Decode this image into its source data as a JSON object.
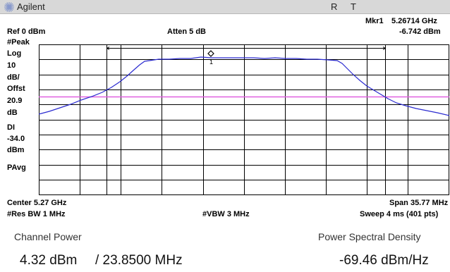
{
  "header": {
    "brand": "Agilent",
    "indicator_r": "R",
    "indicator_t": "T"
  },
  "marker": {
    "readout_label": "Mkr1",
    "frequency": "5.26714 GHz",
    "amplitude": "-6.742 dBm",
    "label": "1"
  },
  "left_panel": {
    "ref": "Ref 0 dBm",
    "detector": "#Peak",
    "scale_type": "Log",
    "scale_value": "10",
    "scale_unit": "dB/",
    "offset_label": "Offst",
    "offset_value": "20.9",
    "offset_unit": "dB",
    "dl_label": "DI",
    "dl_value": "-34.0",
    "dl_unit": "dBm",
    "avg_type": "PAvg"
  },
  "atten": "Atten 5 dB",
  "footer": {
    "center": "Center 5.27 GHz",
    "span": "Span 35.77 MHz",
    "res_bw": "#Res BW 1 MHz",
    "vbw": "#VBW 3 MHz",
    "sweep": "Sweep 4 ms (401 pts)"
  },
  "measurement": {
    "channel_power_label": "Channel Power",
    "channel_power_value": "4.32 dBm",
    "bandwidth_value": "/ 23.8500 MHz",
    "psd_label": "Power Spectral Density",
    "psd_value": "-69.46 dBm/Hz"
  },
  "colors": {
    "trace": "#2b2bd0",
    "display_line": "#e060e0",
    "grid": "#000000",
    "title_bar": "#d8d8d8"
  },
  "icons": {
    "logo": "agilent-spark-icon",
    "marker": "diamond-marker-icon"
  }
}
